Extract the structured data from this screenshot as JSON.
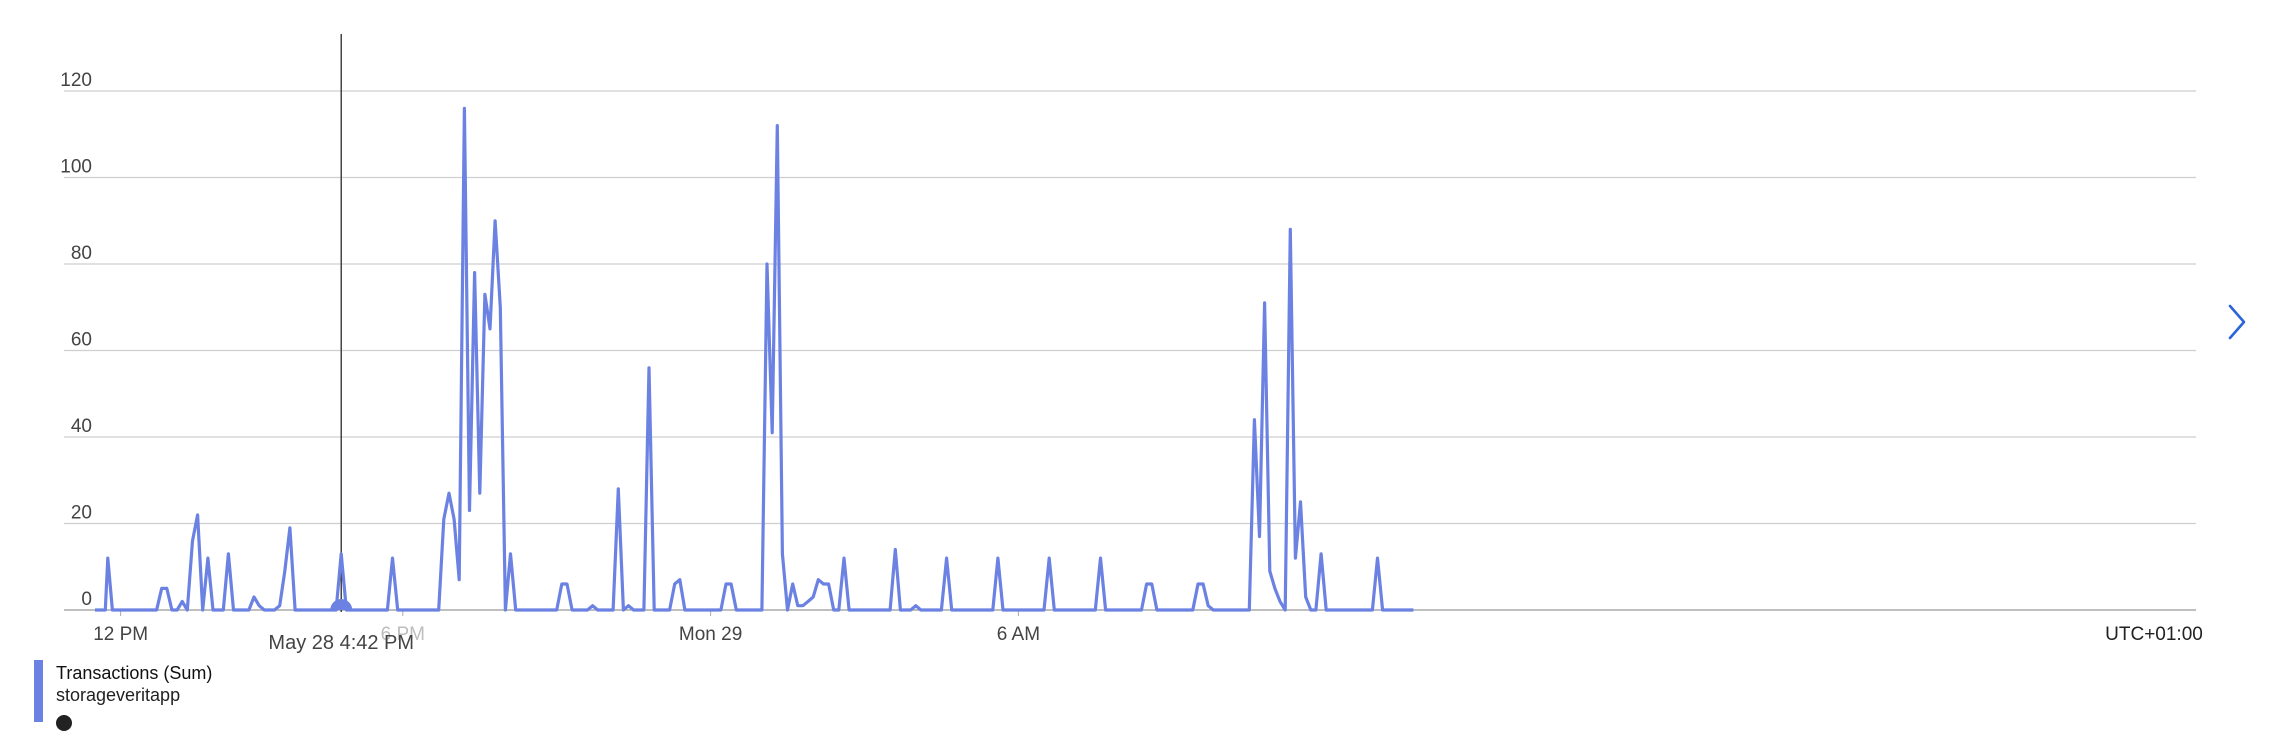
{
  "chart_data": {
    "type": "line",
    "title": "",
    "xlabel": "",
    "ylabel": "",
    "ylim": [
      0,
      120
    ],
    "y_ticks": [
      "0",
      "20",
      "40",
      "60",
      "80",
      "100",
      "120"
    ],
    "x_ticks": [
      {
        "label": "12 PM",
        "t": 0.5,
        "muted": false
      },
      {
        "label": "6 PM",
        "t": 6.0,
        "muted": true
      },
      {
        "label": "Mon 29",
        "t": 12.0,
        "muted": false
      },
      {
        "label": "6 AM",
        "t": 18.0,
        "muted": false
      }
    ],
    "x_range": [
      0,
      24.5
    ],
    "timezone": "UTC+01:00",
    "hover": {
      "label": "May 28 4:42 PM",
      "t": 4.8,
      "value": 0
    },
    "series": [
      {
        "name": "Transactions (Sum)",
        "resource": "storageveritapp",
        "color": "#6b82e3",
        "points": [
          [
            0.0,
            0
          ],
          [
            0.2,
            0
          ],
          [
            0.25,
            12
          ],
          [
            0.34,
            0
          ],
          [
            1.2,
            0
          ],
          [
            1.3,
            5
          ],
          [
            1.4,
            5
          ],
          [
            1.5,
            0
          ],
          [
            1.6,
            0
          ],
          [
            1.7,
            2
          ],
          [
            1.8,
            0
          ],
          [
            1.9,
            16
          ],
          [
            2.0,
            22
          ],
          [
            2.1,
            0
          ],
          [
            2.2,
            12
          ],
          [
            2.3,
            0
          ],
          [
            2.5,
            0
          ],
          [
            2.6,
            13
          ],
          [
            2.7,
            0
          ],
          [
            3.0,
            0
          ],
          [
            3.1,
            3
          ],
          [
            3.2,
            1
          ],
          [
            3.3,
            0
          ],
          [
            3.5,
            0
          ],
          [
            3.6,
            1
          ],
          [
            3.7,
            9
          ],
          [
            3.8,
            19
          ],
          [
            3.9,
            0
          ],
          [
            4.7,
            0
          ],
          [
            4.8,
            13
          ],
          [
            4.9,
            0
          ],
          [
            5.7,
            0
          ],
          [
            5.8,
            12
          ],
          [
            5.9,
            0
          ],
          [
            6.7,
            0
          ],
          [
            6.8,
            21
          ],
          [
            6.9,
            27
          ],
          [
            7.0,
            21
          ],
          [
            7.1,
            7
          ],
          [
            7.2,
            116
          ],
          [
            7.3,
            23
          ],
          [
            7.4,
            78
          ],
          [
            7.5,
            27
          ],
          [
            7.6,
            73
          ],
          [
            7.7,
            65
          ],
          [
            7.8,
            90
          ],
          [
            7.9,
            70
          ],
          [
            8.0,
            0
          ],
          [
            8.1,
            13
          ],
          [
            8.2,
            0
          ],
          [
            9.0,
            0
          ],
          [
            9.1,
            6
          ],
          [
            9.2,
            6
          ],
          [
            9.3,
            0
          ],
          [
            9.6,
            0
          ],
          [
            9.7,
            1
          ],
          [
            9.8,
            0
          ],
          [
            10.1,
            0
          ],
          [
            10.2,
            28
          ],
          [
            10.3,
            0
          ],
          [
            10.4,
            1
          ],
          [
            10.5,
            0
          ],
          [
            10.7,
            0
          ],
          [
            10.8,
            56
          ],
          [
            10.9,
            0
          ],
          [
            11.2,
            0
          ],
          [
            11.3,
            6
          ],
          [
            11.4,
            7
          ],
          [
            11.5,
            0
          ],
          [
            12.2,
            0
          ],
          [
            12.3,
            6
          ],
          [
            12.4,
            6
          ],
          [
            12.5,
            0
          ],
          [
            13.0,
            0
          ],
          [
            13.1,
            80
          ],
          [
            13.2,
            41
          ],
          [
            13.3,
            112
          ],
          [
            13.4,
            13
          ],
          [
            13.5,
            0
          ],
          [
            13.6,
            6
          ],
          [
            13.7,
            1
          ],
          [
            13.8,
            1
          ],
          [
            13.9,
            2
          ],
          [
            14.0,
            3
          ],
          [
            14.1,
            7
          ],
          [
            14.2,
            6
          ],
          [
            14.3,
            6
          ],
          [
            14.4,
            0
          ],
          [
            14.5,
            0
          ],
          [
            14.6,
            12
          ],
          [
            14.7,
            0
          ],
          [
            15.5,
            0
          ],
          [
            15.6,
            14
          ],
          [
            15.7,
            0
          ],
          [
            15.9,
            0
          ],
          [
            16.0,
            1
          ],
          [
            16.1,
            0
          ],
          [
            16.5,
            0
          ],
          [
            16.6,
            12
          ],
          [
            16.7,
            0
          ],
          [
            17.5,
            0
          ],
          [
            17.6,
            12
          ],
          [
            17.7,
            0
          ],
          [
            18.5,
            0
          ],
          [
            18.6,
            12
          ],
          [
            18.7,
            0
          ],
          [
            19.5,
            0
          ],
          [
            19.6,
            12
          ],
          [
            19.7,
            0
          ],
          [
            20.4,
            0
          ],
          [
            20.5,
            6
          ],
          [
            20.6,
            6
          ],
          [
            20.7,
            0
          ],
          [
            21.4,
            0
          ],
          [
            21.5,
            6
          ],
          [
            21.6,
            6
          ],
          [
            21.7,
            1
          ],
          [
            21.8,
            0
          ],
          [
            22.5,
            0
          ],
          [
            22.6,
            44
          ],
          [
            22.7,
            17
          ],
          [
            22.8,
            71
          ],
          [
            22.9,
            9
          ],
          [
            23.0,
            5
          ],
          [
            23.1,
            2
          ],
          [
            23.2,
            0
          ],
          [
            23.3,
            88
          ],
          [
            23.4,
            12
          ],
          [
            23.5,
            25
          ],
          [
            23.6,
            3
          ],
          [
            23.7,
            0
          ],
          [
            23.8,
            0
          ],
          [
            23.9,
            13
          ],
          [
            24.0,
            0
          ],
          [
            24.9,
            0
          ],
          [
            25.0,
            12
          ],
          [
            25.1,
            0
          ],
          [
            25.7,
            0
          ]
        ]
      }
    ]
  },
  "legend": {
    "title": "Transactions (Sum)",
    "subtitle": "storageveritapp"
  },
  "nav": {
    "next_icon": "chevron-right-icon"
  }
}
